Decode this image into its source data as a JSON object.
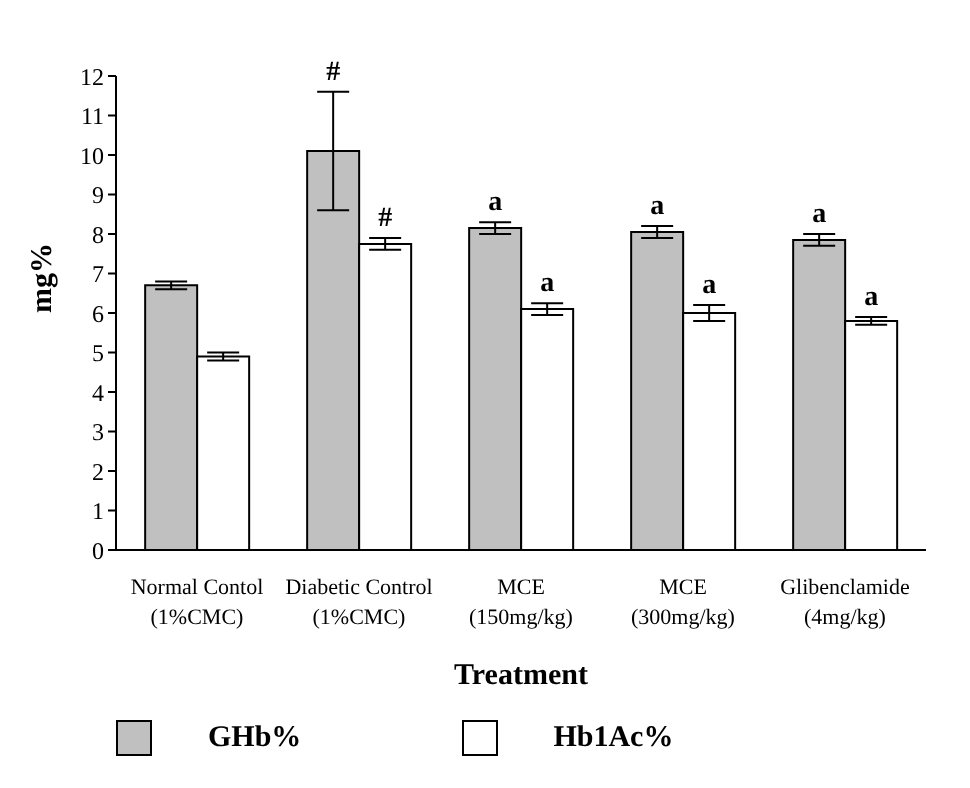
{
  "chart_data": {
    "type": "bar",
    "xlabel": "Treatment",
    "ylabel": "mg%",
    "categories": [
      "Normal Contol (1%CMC)",
      "Diabetic Control (1%CMC)",
      "MCE (150mg/kg)",
      "MCE (300mg/kg)",
      "Glibenclamide (4mg/kg)"
    ],
    "series": [
      {
        "name": "GHb%",
        "color": "#c0c0c0",
        "values": [
          6.7,
          10.1,
          8.15,
          8.05,
          7.85
        ],
        "errors": [
          0.1,
          1.5,
          0.15,
          0.15,
          0.15
        ]
      },
      {
        "name": "Hb1Ac%",
        "color": "#ffffff",
        "values": [
          4.9,
          7.75,
          6.1,
          6.0,
          5.8
        ],
        "errors": [
          0.1,
          0.15,
          0.15,
          0.2,
          0.1
        ]
      }
    ],
    "ylim": [
      0,
      12
    ],
    "yticks": [
      0,
      1,
      2,
      3,
      4,
      5,
      6,
      7,
      8,
      9,
      10,
      11,
      12
    ],
    "grid": false,
    "legend": "bottom left",
    "annotations": [
      {
        "text": "#",
        "x": "Diabetic Control (1%CMC)",
        "y": 11.6
      },
      {
        "text": "#",
        "x": "Diabetic Control (1%CMC)",
        "y": 7.75
      },
      {
        "text": "a",
        "x": "MCE (150mg/kg)",
        "y": 8.15
      },
      {
        "text": "a",
        "x": "MCE (150mg/kg)",
        "y": 6.1
      },
      {
        "text": "a",
        "x": "MCE (300mg/kg)",
        "y": 8.05
      },
      {
        "text": "a",
        "x": "MCE (300mg/kg)",
        "y": 6.0
      },
      {
        "text": "a",
        "x": "Glibenclamide (4mg/kg)",
        "y": 7.85
      },
      {
        "text": "a",
        "x": "Glibenclamide (4mg/kg)",
        "y": 5.8
      }
    ]
  }
}
